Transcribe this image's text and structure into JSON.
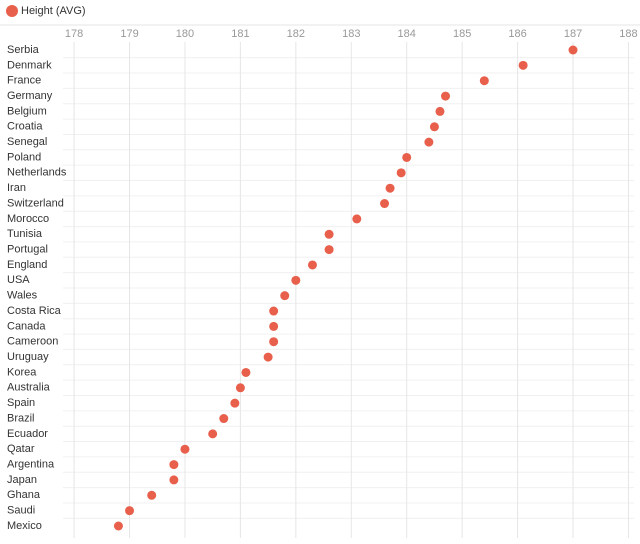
{
  "chart_data": {
    "type": "dot",
    "categories": [
      "Serbia",
      "Denmark",
      "France",
      "Germany",
      "Belgium",
      "Croatia",
      "Senegal",
      "Poland",
      "Netherlands",
      "Iran",
      "Switzerland",
      "Morocco",
      "Tunisia",
      "Portugal",
      "England",
      "USA",
      "Wales",
      "Costa Rica",
      "Canada",
      "Cameroon",
      "Uruguay",
      "Korea",
      "Australia",
      "Spain",
      "Brazil",
      "Ecuador",
      "Qatar",
      "Argentina",
      "Japan",
      "Ghana",
      "Saudi",
      "Mexico"
    ],
    "series": [
      {
        "name": "Height (AVG)",
        "color": "#e8604c",
        "values": [
          187.0,
          186.1,
          185.4,
          184.7,
          184.6,
          184.5,
          184.4,
          184.0,
          183.9,
          183.7,
          183.6,
          183.1,
          182.6,
          182.6,
          182.3,
          182.0,
          181.8,
          181.6,
          181.6,
          181.6,
          181.5,
          181.1,
          181.0,
          180.9,
          180.7,
          180.5,
          180.0,
          179.8,
          179.8,
          179.4,
          179.0,
          178.8
        ]
      }
    ],
    "xlim": [
      177.8,
      188.1
    ],
    "xticks": [
      178,
      179,
      180,
      181,
      182,
      183,
      184,
      185,
      186,
      187,
      188
    ],
    "grid": true,
    "legend": "top-left"
  }
}
